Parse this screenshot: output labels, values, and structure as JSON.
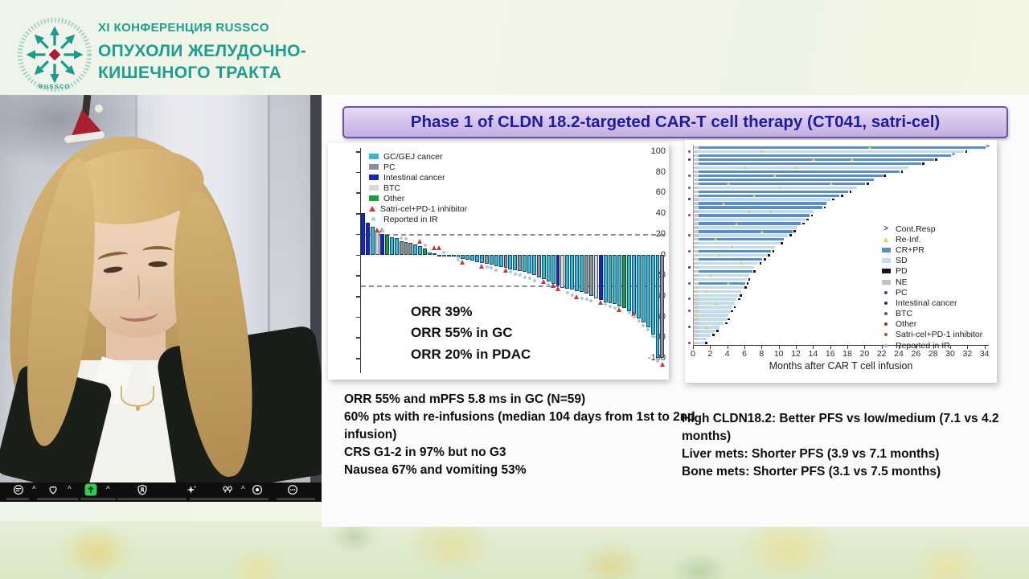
{
  "header": {
    "conference": "XI КОНФЕРЕНЦИЯ RUSSCO",
    "title_line1": "ОПУХОЛИ ЖЕЛУДОЧНО-",
    "title_line2": "КИШЕЧНОГО ТРАКТА",
    "logo_text": "RUSSCO",
    "brand_color": "#1f9e8e",
    "logo_accent_color": "#a32038"
  },
  "slide": {
    "title": "Phase 1 of CLDN 18.2-targeted CAR-T cell therapy (CT041, satri-cel)",
    "banner_text_color": "#1c1c9d",
    "banner_border_color": "#6a559e"
  },
  "notes_left": [
    "ORR 55% and mPFS 5.8 ms in GC (N=59)",
    "60% pts with re-infusions (median 104 days from 1st to 2nd infusion)",
    "CRS G1-2 in 97% but no G3",
    "Nausea 67% and vomiting 53%"
  ],
  "notes_right": [
    "High CLDN18.2: Better PFS vs low/medium (7.1 vs 4.2 months)",
    "Liver mets: Shorter PFS (3.9 vs 7.1 months)",
    "Bone mets: Shorter PFS (3.1 vs 7.5 months)"
  ],
  "toolbar": {
    "background": "#0e0e0e",
    "share_accent": "#35c759",
    "buttons": [
      {
        "name": "audio-settings",
        "chevron": true
      },
      {
        "name": "reactions",
        "chevron": true
      },
      {
        "name": "share-screen",
        "chevron": true
      },
      {
        "name": "host-tools",
        "chevron": false
      },
      {
        "name": "ai-companion",
        "chevron": false
      },
      {
        "name": "smart-summary",
        "chevron": true
      },
      {
        "name": "record",
        "chevron": false
      },
      {
        "name": "more",
        "chevron": false
      }
    ]
  },
  "chart_data": [
    {
      "type": "bar",
      "variant": "waterfall",
      "title": "",
      "xlabel": "",
      "ylabel": "",
      "ylim": [
        -110,
        100
      ],
      "yticks": [
        100,
        80,
        60,
        40,
        20,
        0,
        -20,
        -40,
        -60,
        -80,
        -100
      ],
      "ref_lines": [
        20,
        -30
      ],
      "grid": false,
      "annotations": [
        "ORR 39%",
        "ORR 55% in GC",
        "ORR 20% in PDAC"
      ],
      "colors": {
        "gc": "#33b7d8",
        "pc": "#8a9096",
        "int": "#1b22c4",
        "btc": "#d8d8d8",
        "other": "#1e9c3c"
      },
      "legend": [
        {
          "label": "GC/GEJ cancer",
          "swatch": "rect",
          "color": "#33b7d8"
        },
        {
          "label": "PC",
          "swatch": "rect",
          "color": "#8a9096"
        },
        {
          "label": "Intestinal cancer",
          "swatch": "rect",
          "color": "#1b22c4"
        },
        {
          "label": "BTC",
          "swatch": "rect",
          "color": "#d8d8d8"
        },
        {
          "label": "Other",
          "swatch": "rect",
          "color": "#1e9c3c"
        },
        {
          "label": "Satri-cel+PD-1 inhibitor",
          "swatch": "tri",
          "color": "#c23a3a"
        },
        {
          "label": "Reported in IR",
          "swatch": "dot",
          "color": "#a8cade"
        }
      ],
      "bars": [
        [
          40,
          "int"
        ],
        [
          31,
          "int"
        ],
        [
          27,
          "gc"
        ],
        [
          22,
          "btc"
        ],
        [
          20,
          "int"
        ],
        [
          19,
          "other"
        ],
        [
          17,
          "gc"
        ],
        [
          16,
          "gc"
        ],
        [
          13,
          "pc"
        ],
        [
          12,
          "pc"
        ],
        [
          11,
          "pc"
        ],
        [
          10,
          "gc"
        ],
        [
          8,
          "gc"
        ],
        [
          6,
          "other"
        ],
        [
          2,
          "gc"
        ],
        [
          1,
          "gc"
        ],
        [
          0,
          "gc"
        ],
        [
          0,
          "btc"
        ],
        [
          -1,
          "gc"
        ],
        [
          -2,
          "gc"
        ],
        [
          -3,
          "btc"
        ],
        [
          -4,
          "gc"
        ],
        [
          -5,
          "gc"
        ],
        [
          -6,
          "gc"
        ],
        [
          -7,
          "gc"
        ],
        [
          -8,
          "gc"
        ],
        [
          -9,
          "pc"
        ],
        [
          -10,
          "gc"
        ],
        [
          -11,
          "gc"
        ],
        [
          -12,
          "gc"
        ],
        [
          -13,
          "pc"
        ],
        [
          -14,
          "gc"
        ],
        [
          -15,
          "gc"
        ],
        [
          -16,
          "pc"
        ],
        [
          -17,
          "gc"
        ],
        [
          -18,
          "gc"
        ],
        [
          -20,
          "gc"
        ],
        [
          -22,
          "pc"
        ],
        [
          -24,
          "gc"
        ],
        [
          -26,
          "gc"
        ],
        [
          -28,
          "gc"
        ],
        [
          -30,
          "int"
        ],
        [
          -32,
          "btc"
        ],
        [
          -33,
          "gc"
        ],
        [
          -34,
          "gc"
        ],
        [
          -35,
          "gc"
        ],
        [
          -36,
          "gc"
        ],
        [
          -38,
          "pc"
        ],
        [
          -40,
          "pc"
        ],
        [
          -42,
          "btc"
        ],
        [
          -44,
          "int"
        ],
        [
          -46,
          "gc"
        ],
        [
          -47,
          "gc"
        ],
        [
          -48,
          "gc"
        ],
        [
          -50,
          "gc"
        ],
        [
          -52,
          "other"
        ],
        [
          -55,
          "gc"
        ],
        [
          -58,
          "gc"
        ],
        [
          -62,
          "gc"
        ],
        [
          -66,
          "gc"
        ],
        [
          -70,
          "gc"
        ],
        [
          -77,
          "gc"
        ],
        [
          -100,
          "gc"
        ],
        [
          -100,
          "pc"
        ]
      ],
      "markers": {
        "triangle_color": "#c23a3a",
        "dot_color": "#a8cade",
        "tri": [
          [
            3,
            24
          ],
          [
            4,
            24
          ],
          [
            12,
            13
          ],
          [
            15,
            7
          ],
          [
            16,
            7
          ],
          [
            21,
            -7
          ],
          [
            25,
            -11
          ],
          [
            30,
            -15
          ],
          [
            38,
            -26
          ],
          [
            40,
            -30
          ],
          [
            41,
            -33
          ],
          [
            45,
            -41
          ],
          [
            50,
            -46
          ],
          [
            54,
            -53
          ],
          [
            57,
            -57
          ],
          [
            63,
            -106
          ]
        ],
        "dot": [
          [
            4,
            23
          ],
          [
            8,
            16
          ],
          [
            9,
            15
          ],
          [
            13,
            9
          ],
          [
            17,
            2
          ],
          [
            20,
            -5
          ],
          [
            26,
            -12
          ],
          [
            27,
            -13
          ],
          [
            28,
            -15
          ],
          [
            31,
            -17
          ],
          [
            32,
            -19
          ],
          [
            33,
            -20
          ],
          [
            34,
            -22
          ],
          [
            35,
            -23
          ],
          [
            36,
            -25
          ],
          [
            39,
            -29
          ],
          [
            43,
            -37
          ],
          [
            44,
            -39
          ],
          [
            46,
            -42
          ],
          [
            47,
            -43
          ],
          [
            48,
            -45
          ],
          [
            51,
            -48
          ],
          [
            52,
            -50
          ],
          [
            53,
            -52
          ],
          [
            56,
            -56
          ],
          [
            57,
            -60
          ],
          [
            58,
            -64
          ],
          [
            59,
            -69
          ],
          [
            60,
            -73
          ],
          [
            61,
            -79
          ],
          [
            62,
            -103
          ]
        ]
      }
    },
    {
      "type": "bar",
      "variant": "swimmer",
      "orientation": "horizontal",
      "xlabel": "Months after CAR T cell infusion",
      "xlim": [
        0,
        34.5
      ],
      "xticks": [
        0,
        2,
        4,
        6,
        8,
        10,
        12,
        14,
        16,
        18,
        20,
        22,
        24,
        26,
        28,
        30,
        32,
        34
      ],
      "grid": false,
      "colors": {
        "b": "#5b8ec2",
        "l": "#c3dcec",
        "lead": "#c9c9c9",
        "pd": "#151515",
        "tri": "#e0cc4e",
        "arrow": "#2a3f9e"
      },
      "legend": [
        {
          "label": "Cont.Resp",
          "glyph": "arrow",
          "color": "#2a3f9e"
        },
        {
          "label": "Re-Inf.",
          "glyph": "tri",
          "color": "#e0cc4e"
        },
        {
          "label": "CR+PR",
          "glyph": "rect",
          "color": "#5b8ec2"
        },
        {
          "label": "SD",
          "glyph": "rect",
          "color": "#c3dcec"
        },
        {
          "label": "PD",
          "glyph": "rect",
          "color": "#151515"
        },
        {
          "label": "NE",
          "glyph": "rect",
          "color": "#c2c2c2"
        },
        {
          "label": "PC",
          "glyph": "dot",
          "color": "#46468c"
        },
        {
          "label": "Intestinal cancer",
          "glyph": "dot",
          "color": "#26269a"
        },
        {
          "label": "BTC",
          "glyph": "dot",
          "color": "#5a5a5a"
        },
        {
          "label": "Other",
          "glyph": "dot",
          "color": "#9a3030"
        },
        {
          "label": "Satri-cel+PD-1 inhibitor",
          "glyph": "dot",
          "color": "#c04545"
        },
        {
          "label": "Reported in IR",
          "glyph": "dot",
          "color": "#9fb8cc"
        }
      ],
      "rows": [
        [
          34,
          "b",
          "a",
          [
            20.5
          ],
          0
        ],
        [
          31.5,
          "l",
          "p",
          [
            8
          ],
          "#b33636"
        ],
        [
          30,
          "b",
          "a",
          0,
          0
        ],
        [
          28,
          "b",
          "p",
          [
            14,
            18.5
          ],
          "#26269a"
        ],
        [
          26.5,
          "b",
          "p",
          0,
          0
        ],
        [
          25,
          "l",
          "",
          [
            6,
            12
          ],
          0
        ],
        [
          24,
          "b",
          "p",
          0,
          0
        ],
        [
          22,
          "b",
          "p",
          [
            9.5
          ],
          "#b33636"
        ],
        [
          21,
          "b",
          "",
          0,
          0
        ],
        [
          20,
          "b",
          "p",
          [
            4,
            16
          ],
          0
        ],
        [
          19,
          "l",
          "",
          [
            10
          ],
          "#5a5a5a"
        ],
        [
          18,
          "b",
          "p",
          0,
          0
        ],
        [
          17,
          "b",
          "p",
          [
            7
          ],
          0
        ],
        [
          16,
          "l",
          "p",
          0,
          "#26269a"
        ],
        [
          15.5,
          "b",
          "",
          [
            3.5
          ],
          0
        ],
        [
          15,
          "b",
          "p",
          0,
          0
        ],
        [
          14,
          "l",
          "",
          [
            6.5,
            9
          ],
          0
        ],
        [
          13.5,
          "b",
          "p",
          0,
          "#b33636"
        ],
        [
          13,
          "l",
          "p",
          0,
          0
        ],
        [
          12.5,
          "b",
          "p",
          [
            5
          ],
          0
        ],
        [
          12,
          "l",
          "",
          0,
          0
        ],
        [
          11.5,
          "b",
          "p",
          [
            8
          ],
          0
        ],
        [
          11,
          "l",
          "p",
          0,
          "#9a3030"
        ],
        [
          10.5,
          "b",
          "",
          [
            2.5
          ],
          0
        ],
        [
          10,
          "l",
          "p",
          0,
          0
        ],
        [
          9.5,
          "l",
          "",
          [
            4.5
          ],
          0
        ],
        [
          9,
          "b",
          "p",
          0,
          "#b33636"
        ],
        [
          8.5,
          "l",
          "p",
          [
            3
          ],
          0
        ],
        [
          8,
          "b",
          "p",
          0,
          0
        ],
        [
          7.5,
          "l",
          "p",
          [
            5.5
          ],
          0
        ],
        [
          7,
          "l",
          "",
          0,
          "#26269a"
        ],
        [
          6.8,
          "b",
          "p",
          0,
          0
        ],
        [
          6.5,
          "l",
          "",
          [
            2
          ],
          0
        ],
        [
          6.2,
          "l",
          "p",
          0,
          0
        ],
        [
          6,
          "b",
          "p",
          [
            4
          ],
          "#b33636"
        ],
        [
          5.8,
          "l",
          "p",
          0,
          0
        ],
        [
          5.5,
          "l",
          "",
          [
            1.5
          ],
          0
        ],
        [
          5.2,
          "l",
          "p",
          0,
          0
        ],
        [
          5,
          "l",
          "p",
          0,
          "#5a5a5a"
        ],
        [
          4.8,
          "l",
          "",
          [
            2.5
          ],
          0
        ],
        [
          4.5,
          "l",
          "p",
          0,
          0
        ],
        [
          4.2,
          "l",
          "p",
          0,
          "#b33636"
        ],
        [
          4,
          "l",
          "",
          [
            1
          ],
          0
        ],
        [
          3.8,
          "l",
          "p",
          0,
          0
        ],
        [
          3.5,
          "l",
          "p",
          0,
          0
        ],
        [
          3,
          "l",
          "",
          [
            1.5
          ],
          "#9a3030"
        ],
        [
          2.5,
          "l",
          "p",
          0,
          0
        ],
        [
          2,
          "l",
          "p",
          0,
          0
        ],
        [
          1.5,
          "l",
          "",
          0,
          0
        ],
        [
          1.2,
          "l",
          "p",
          0,
          "#b33636"
        ]
      ]
    }
  ]
}
